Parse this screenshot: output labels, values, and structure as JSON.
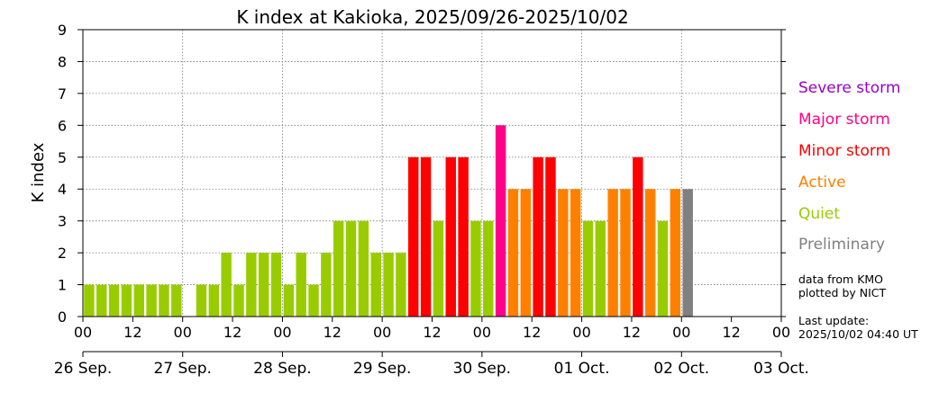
{
  "chart_data": {
    "type": "bar",
    "title": "K index at Kakioka, 2025/09/26-2025/10/02",
    "ylabel": "K index",
    "xlabel": "",
    "ylim": [
      0,
      9
    ],
    "yticks": [
      0,
      1,
      2,
      3,
      4,
      5,
      6,
      7,
      8,
      9
    ],
    "grid": true,
    "bars_per_day": 8,
    "hour_ticks": [
      "00",
      "12",
      "00",
      "12",
      "00",
      "12",
      "00",
      "12",
      "00",
      "12",
      "00",
      "12",
      "00",
      "12",
      "00"
    ],
    "date_ticks": [
      "26 Sep.",
      "27 Sep.",
      "28 Sep.",
      "29 Sep.",
      "30 Sep.",
      "01 Oct.",
      "02 Oct.",
      "03 Oct."
    ],
    "values": [
      1,
      1,
      1,
      1,
      1,
      1,
      1,
      1,
      0,
      1,
      1,
      2,
      1,
      2,
      2,
      2,
      1,
      2,
      1,
      2,
      3,
      3,
      3,
      2,
      2,
      2,
      5,
      5,
      3,
      5,
      5,
      3,
      3,
      6,
      4,
      4,
      5,
      5,
      4,
      4,
      3,
      3,
      4,
      4,
      5,
      4,
      3,
      4,
      4
    ],
    "levels": [
      "quiet",
      "quiet",
      "quiet",
      "quiet",
      "quiet",
      "quiet",
      "quiet",
      "quiet",
      "quiet",
      "quiet",
      "quiet",
      "quiet",
      "quiet",
      "quiet",
      "quiet",
      "quiet",
      "quiet",
      "quiet",
      "quiet",
      "quiet",
      "quiet",
      "quiet",
      "quiet",
      "quiet",
      "quiet",
      "quiet",
      "minor",
      "minor",
      "quiet",
      "minor",
      "minor",
      "quiet",
      "quiet",
      "major",
      "active",
      "active",
      "minor",
      "minor",
      "active",
      "active",
      "quiet",
      "quiet",
      "active",
      "active",
      "minor",
      "active",
      "quiet",
      "active",
      "preliminary"
    ],
    "colors": {
      "severe": "#9900cc",
      "major": "#ff0088",
      "minor": "#ff0000",
      "active": "#ff8000",
      "quiet": "#99cc00",
      "preliminary": "#808080"
    }
  },
  "legend": {
    "severe": "Severe storm",
    "major": "Major storm",
    "minor": "Minor storm",
    "active": "Active",
    "quiet": "Quiet",
    "preliminary": "Preliminary"
  },
  "source": {
    "line1": "data from KMO",
    "line2": "plotted by NICT"
  },
  "update": {
    "label": "Last update:",
    "time": "2025/10/02 04:40 UT"
  }
}
